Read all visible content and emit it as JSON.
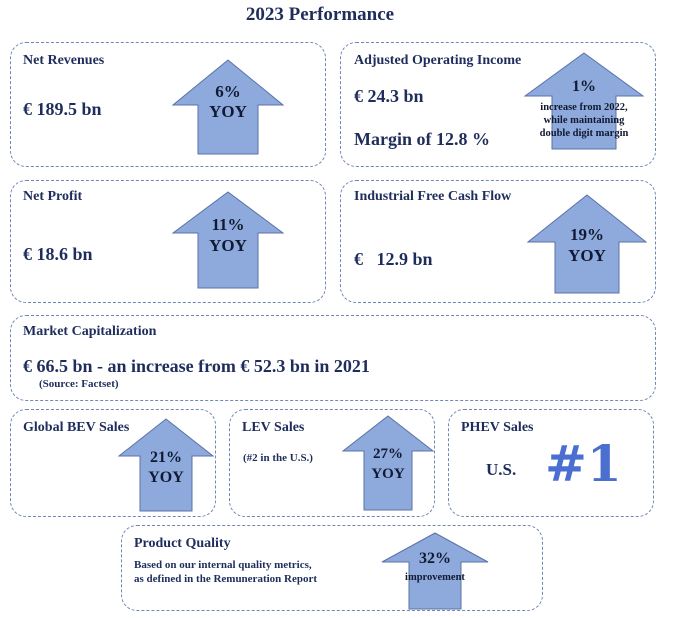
{
  "title": "2023 Performance",
  "colors": {
    "arrow_fill": "#8ea9db",
    "arrow_stroke": "#5a72a8",
    "border": "#6f86b8",
    "text": "#1f2d5c",
    "rank": "#4a6fd0"
  },
  "cards": {
    "net_revenues": {
      "heading": "Net Revenues",
      "value": "€ 189.5 bn",
      "pct": "6%",
      "yoy": "YOY"
    },
    "adjusted_operating_income": {
      "heading": "Adjusted Operating Income",
      "value": "€ 24.3 bn",
      "margin": "Margin of 12.8 %",
      "pct": "1%",
      "note_line1": "increase from 2022,",
      "note_line2": "while maintaining",
      "note_line3": "double digit margin"
    },
    "net_profit": {
      "heading": "Net Profit",
      "value": "€ 18.6 bn",
      "pct": "11%",
      "yoy": "YOY"
    },
    "industrial_fcf": {
      "heading": "Industrial Free Cash Flow",
      "value": "€   12.9 bn",
      "pct": "19%",
      "yoy": "YOY"
    },
    "market_cap": {
      "heading": "Market Capitalization",
      "value": "€ 66.5 bn - an increase from € 52.3 bn in 2021",
      "source": "(Source: Factset)"
    },
    "global_bev": {
      "heading": "Global BEV Sales",
      "pct": "21%",
      "yoy": "YOY"
    },
    "lev": {
      "heading": "LEV Sales",
      "sub": "(#2 in the U.S.)",
      "pct": "27%",
      "yoy": "YOY"
    },
    "phev": {
      "heading": "PHEV Sales",
      "region": "U.S.",
      "rank": "#1"
    },
    "product_quality": {
      "heading": "Product Quality",
      "desc_line1": "Based on our internal quality metrics,",
      "desc_line2": "as defined in the Remuneration Report",
      "pct": "32%",
      "label": "improvement"
    }
  }
}
